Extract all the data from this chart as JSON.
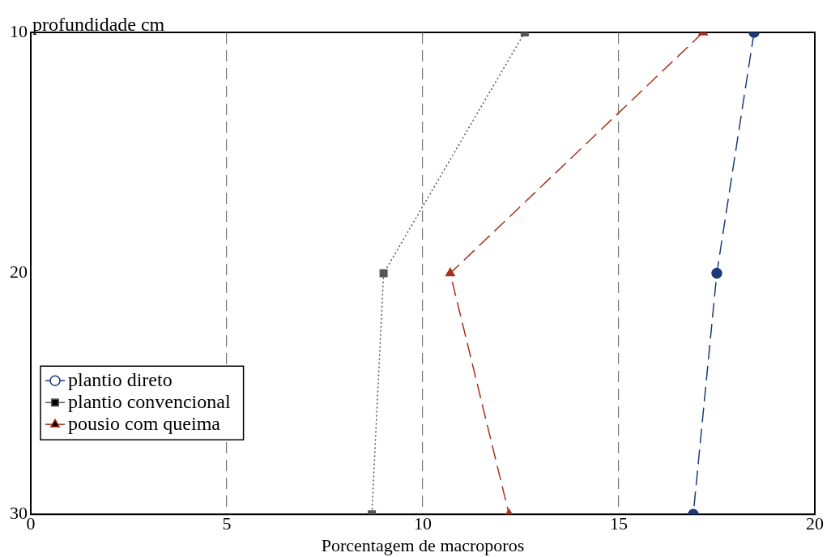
{
  "chart_data": {
    "type": "line",
    "xlabel": "Porcentagem de macroporos",
    "ylabel": "profundidade cm",
    "xlim": [
      0,
      20
    ],
    "xticks": [
      0,
      5,
      10,
      15,
      20
    ],
    "ylim": [
      30,
      10
    ],
    "yticks": [
      10,
      20,
      30
    ],
    "grid": "x",
    "legend": "bottom left",
    "series": [
      {
        "name": "plantio direto",
        "color": "#1f3a7a",
        "x": [
          18.45,
          17.5,
          16.9
        ],
        "values": [
          10,
          20,
          30
        ],
        "marker": "circle",
        "line_style": "dashed"
      },
      {
        "name": "plantio convencional",
        "color": "#555555",
        "x": [
          12.6,
          9.0,
          8.7
        ],
        "values": [
          10,
          20,
          30
        ],
        "marker": "square",
        "line_style": "dotted"
      },
      {
        "name": "pousio com queima",
        "color": "#a8321c",
        "x": [
          17.15,
          10.7,
          12.2
        ],
        "values": [
          10,
          20,
          30
        ],
        "marker": "triangle",
        "line_style": "dashed"
      }
    ]
  }
}
